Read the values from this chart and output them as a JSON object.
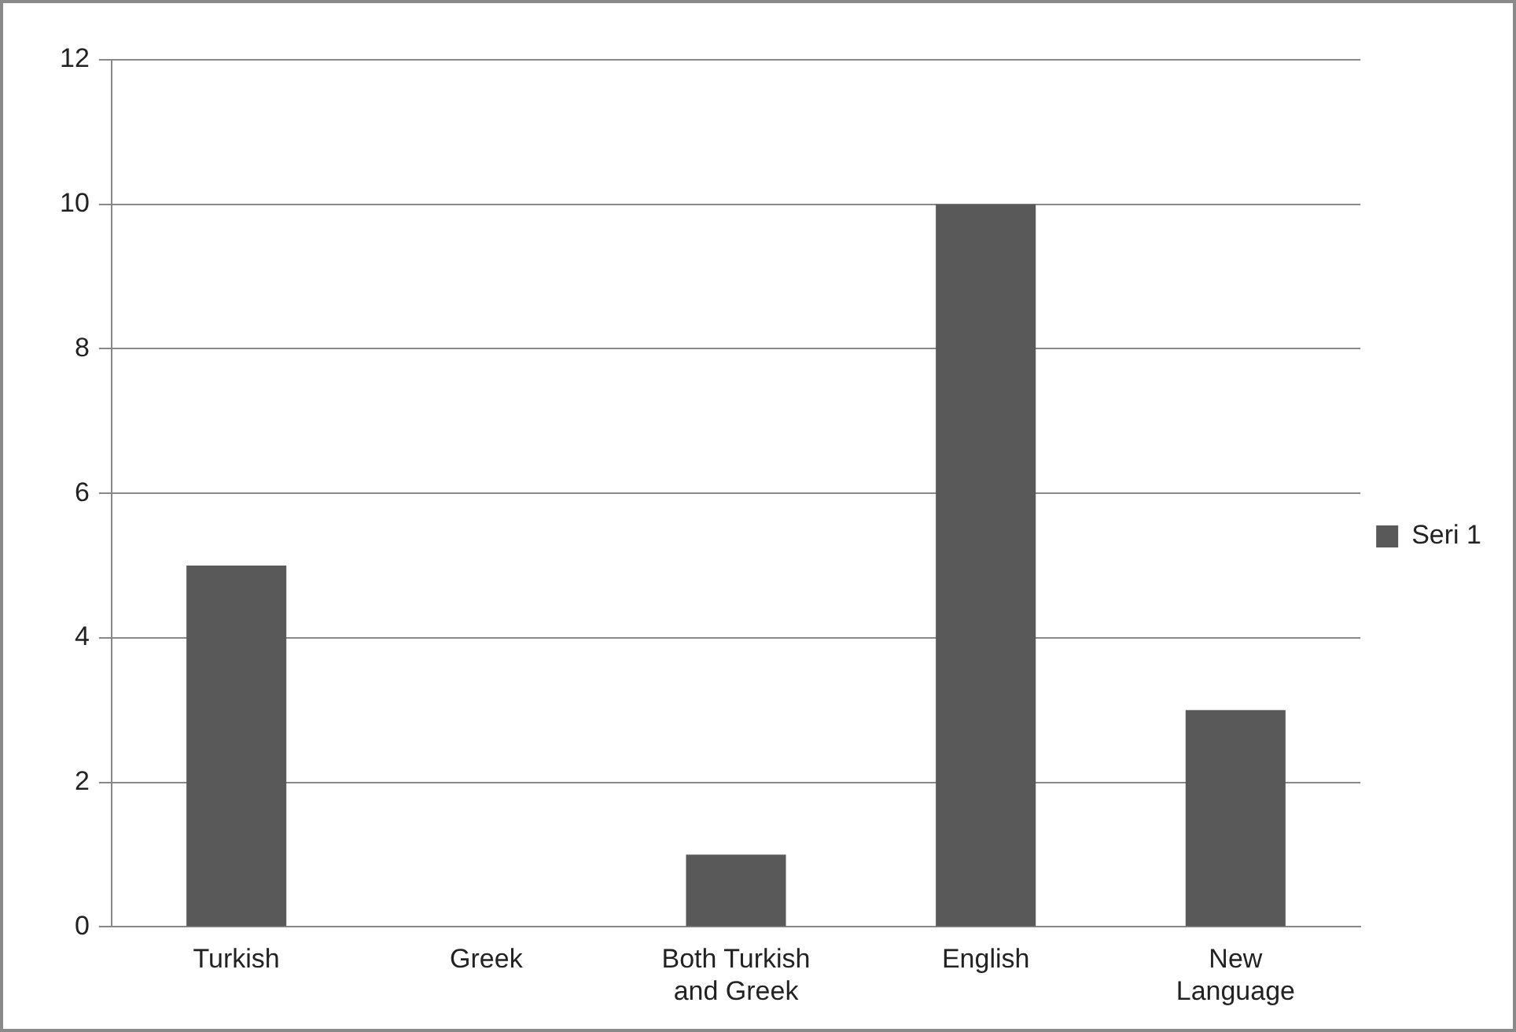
{
  "chart_data": {
    "type": "bar",
    "categories": [
      "Turkish",
      "Greek",
      "Both Turkish and Greek",
      "English",
      "New Language"
    ],
    "series": [
      {
        "name": "Seri 1",
        "color": "#595959",
        "values": [
          5,
          0,
          1,
          10,
          3
        ]
      }
    ],
    "ylim": [
      0,
      12
    ],
    "yticks": [
      0,
      2,
      4,
      6,
      8,
      10,
      12
    ],
    "grid": "y",
    "legend": "right"
  }
}
